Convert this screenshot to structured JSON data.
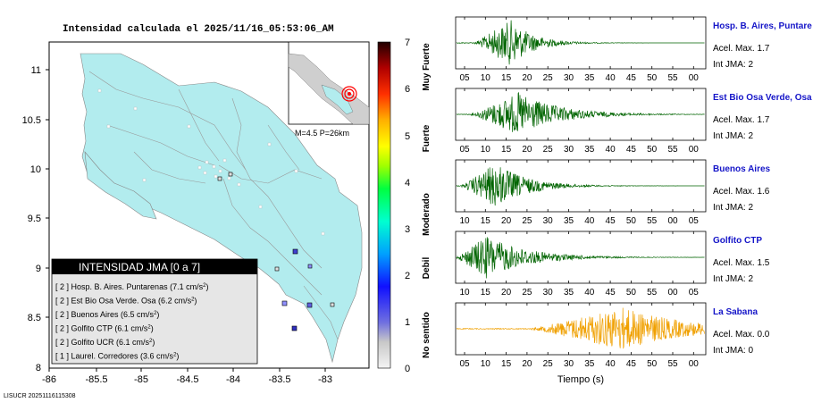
{
  "map": {
    "title": "Intensidad calculada el 2025/11/16_05:53:06_AM",
    "x_ticks": [
      "-86",
      "-85.5",
      "-85",
      "-84.5",
      "-84",
      "-83.5",
      "-83"
    ],
    "y_ticks": [
      "11",
      "10.5",
      "10",
      "9.5",
      "9",
      "8.5",
      "8"
    ],
    "inset_label": "M=4.5 P=26km",
    "legend_title": "INTENSIDAD JMA [0 a 7]",
    "legend_items": [
      {
        "level": "[ 2 ]",
        "name": "Hosp. B. Aires. Puntarenas",
        "pga": "(7.1 cm/s",
        "exp": "2",
        "close": ")"
      },
      {
        "level": "[ 2 ]",
        "name": "Est Bio Osa Verde. Osa",
        "pga": "(6.2 cm/s",
        "exp": "2",
        "close": ")"
      },
      {
        "level": "[ 2 ]",
        "name": "Buenos Aires",
        "pga": "(6.5 cm/s",
        "exp": "2",
        "close": ")"
      },
      {
        "level": "[ 2 ]",
        "name": "Golfito CTP",
        "pga": "(6.1 cm/s",
        "exp": "2",
        "close": ")"
      },
      {
        "level": "[ 2 ]",
        "name": "Golfito UCR",
        "pga": "(6.1 cm/s",
        "exp": "2",
        "close": ")"
      },
      {
        "level": "[ 1 ]",
        "name": "Laurel. Corredores",
        "pga": "(3.6 cm/s",
        "exp": "2",
        "close": ")"
      }
    ]
  },
  "colorbar": {
    "ticks": [
      "7",
      "6",
      "5",
      "4",
      "3",
      "2",
      "1",
      "0"
    ],
    "labels": [
      "Muy Fuerte",
      "Fuerte",
      "Moderado",
      "Debil",
      "No sentido"
    ],
    "colors": [
      "#e8e8e8",
      "#8a8aff",
      "#1010ff",
      "#00a0ff",
      "#00ffd0",
      "#00ff40",
      "#a0ff00",
      "#ffff00",
      "#ffb000",
      "#ff4000",
      "#d00000",
      "#700000",
      "#200000"
    ]
  },
  "chart_data": [
    {
      "type": "line",
      "station": "Hosp. B. Aires, Puntare",
      "acel": "Acel. Max. 1.7",
      "jma": "Int JMA: 2",
      "color": "#006400",
      "ticks": [
        "05",
        "10",
        "15",
        "20",
        "25",
        "30",
        "35",
        "40",
        "45",
        "50",
        "55",
        "00"
      ],
      "onset": 0.07,
      "peak": 0.22,
      "decay": 0.09,
      "amp": 0.95
    },
    {
      "type": "line",
      "station": "Est Bio Osa Verde, Osa",
      "acel": "Acel. Max. 1.7",
      "jma": "Int JMA: 2",
      "color": "#006400",
      "ticks": [
        "05",
        "10",
        "15",
        "20",
        "25",
        "30",
        "35",
        "40",
        "45",
        "50",
        "55",
        "00"
      ],
      "onset": 0.06,
      "peak": 0.25,
      "decay": 0.16,
      "amp": 0.9
    },
    {
      "type": "line",
      "station": "Buenos Aires",
      "acel": "Acel. Max. 1.6",
      "jma": "Int JMA: 2",
      "color": "#006400",
      "ticks": [
        "10",
        "15",
        "20",
        "25",
        "30",
        "35",
        "40",
        "45",
        "50",
        "55",
        "00",
        "05"
      ],
      "onset": 0.02,
      "peak": 0.16,
      "decay": 0.12,
      "amp": 0.95
    },
    {
      "type": "line",
      "station": "Golfito CTP",
      "acel": "Acel. Max. 1.5",
      "jma": "Int JMA: 2",
      "color": "#006400",
      "ticks": [
        "10",
        "15",
        "20",
        "25",
        "30",
        "35",
        "40",
        "45",
        "50",
        "55",
        "00",
        "05"
      ],
      "onset": 0.0,
      "peak": 0.12,
      "decay": 0.16,
      "amp": 0.9
    },
    {
      "type": "line",
      "station": "La Sabana",
      "acel": "Acel. Max. 0.0",
      "jma": "Int JMA: 0",
      "color": "#f0a000",
      "ticks": [
        "05",
        "10",
        "15",
        "20",
        "25",
        "30",
        "35",
        "40",
        "45",
        "50",
        "55",
        "00"
      ],
      "onset": 0.3,
      "peak": 0.67,
      "decay": 0.25,
      "amp": 0.9
    }
  ],
  "waveforms": {
    "xlabel": "Tiempo (s)"
  },
  "footer": "LISUCR 20251116115308"
}
